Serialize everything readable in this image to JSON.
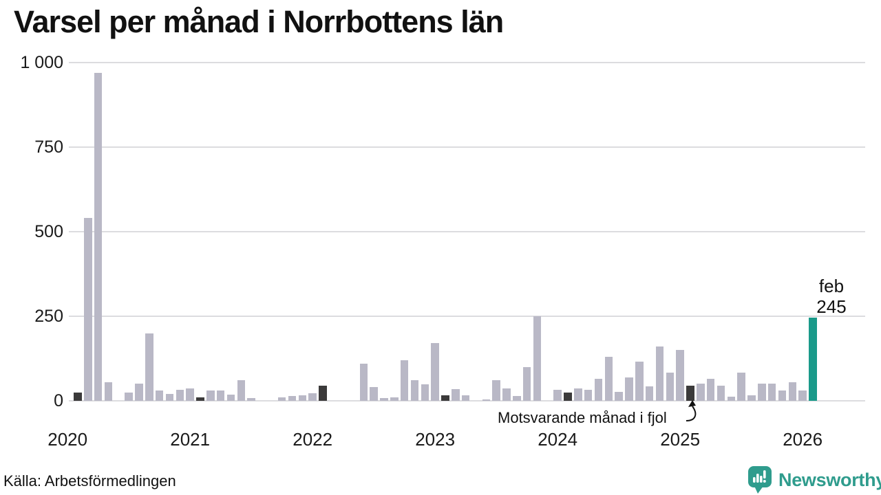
{
  "title": "Varsel per månad i Norrbottens län",
  "source": "Källa: Arbetsförmedlingen",
  "branding": {
    "name": "Newsworthy"
  },
  "annotation": {
    "text": "Motsvarande månad i fjol",
    "points_to": "2025-02"
  },
  "current_label": {
    "month": "feb",
    "value": "245"
  },
  "y_axis": {
    "ticks": [
      "1 000",
      "750",
      "500",
      "250",
      "0"
    ],
    "values": [
      1000,
      750,
      500,
      250,
      0
    ]
  },
  "x_axis": {
    "years": [
      "2020",
      "2021",
      "2022",
      "2023",
      "2024",
      "2025",
      "2026"
    ]
  },
  "colors": {
    "bar": "#b9b8c6",
    "bar_prev_feb": "#3b3a3a",
    "bar_current": "#1a9a8a",
    "grid": "#dcdcdf",
    "text": "#111111",
    "brand": "#2f9c8d"
  },
  "chart_data": {
    "type": "bar",
    "title": "Varsel per månad i Norrbottens län",
    "xlabel": "",
    "ylabel": "",
    "ylim": [
      0,
      1000
    ],
    "grid": "horizontal",
    "legend": "none",
    "highlight_note": "February bars dark; current month (feb 2026) teal, labeled 245",
    "months": [
      {
        "m": "2020-02",
        "v": 25,
        "k": "prev_feb"
      },
      {
        "m": "2020-03",
        "v": 540,
        "k": "normal"
      },
      {
        "m": "2020-04",
        "v": 970,
        "k": "normal"
      },
      {
        "m": "2020-05",
        "v": 55,
        "k": "normal"
      },
      {
        "m": "2020-06",
        "v": 0,
        "k": "normal"
      },
      {
        "m": "2020-07",
        "v": 25,
        "k": "normal"
      },
      {
        "m": "2020-08",
        "v": 50,
        "k": "normal"
      },
      {
        "m": "2020-09",
        "v": 200,
        "k": "normal"
      },
      {
        "m": "2020-10",
        "v": 30,
        "k": "normal"
      },
      {
        "m": "2020-11",
        "v": 20,
        "k": "normal"
      },
      {
        "m": "2020-12",
        "v": 33,
        "k": "normal"
      },
      {
        "m": "2021-01",
        "v": 37,
        "k": "normal"
      },
      {
        "m": "2021-02",
        "v": 10,
        "k": "prev_feb"
      },
      {
        "m": "2021-03",
        "v": 30,
        "k": "normal"
      },
      {
        "m": "2021-04",
        "v": 30,
        "k": "normal"
      },
      {
        "m": "2021-05",
        "v": 18,
        "k": "normal"
      },
      {
        "m": "2021-06",
        "v": 60,
        "k": "normal"
      },
      {
        "m": "2021-07",
        "v": 8,
        "k": "normal"
      },
      {
        "m": "2021-08",
        "v": 0,
        "k": "normal"
      },
      {
        "m": "2021-09",
        "v": 0,
        "k": "normal"
      },
      {
        "m": "2021-10",
        "v": 10,
        "k": "normal"
      },
      {
        "m": "2021-11",
        "v": 14,
        "k": "normal"
      },
      {
        "m": "2021-12",
        "v": 16,
        "k": "normal"
      },
      {
        "m": "2022-01",
        "v": 23,
        "k": "normal"
      },
      {
        "m": "2022-02",
        "v": 45,
        "k": "prev_feb"
      },
      {
        "m": "2022-03",
        "v": 0,
        "k": "normal"
      },
      {
        "m": "2022-04",
        "v": 0,
        "k": "normal"
      },
      {
        "m": "2022-05",
        "v": 0,
        "k": "normal"
      },
      {
        "m": "2022-06",
        "v": 110,
        "k": "normal"
      },
      {
        "m": "2022-07",
        "v": 40,
        "k": "normal"
      },
      {
        "m": "2022-08",
        "v": 8,
        "k": "normal"
      },
      {
        "m": "2022-09",
        "v": 10,
        "k": "normal"
      },
      {
        "m": "2022-10",
        "v": 120,
        "k": "normal"
      },
      {
        "m": "2022-11",
        "v": 60,
        "k": "normal"
      },
      {
        "m": "2022-12",
        "v": 48,
        "k": "normal"
      },
      {
        "m": "2023-01",
        "v": 170,
        "k": "normal"
      },
      {
        "m": "2023-02",
        "v": 16,
        "k": "prev_feb"
      },
      {
        "m": "2023-03",
        "v": 35,
        "k": "normal"
      },
      {
        "m": "2023-04",
        "v": 16,
        "k": "normal"
      },
      {
        "m": "2023-05",
        "v": 0,
        "k": "normal"
      },
      {
        "m": "2023-06",
        "v": 4,
        "k": "normal"
      },
      {
        "m": "2023-07",
        "v": 60,
        "k": "normal"
      },
      {
        "m": "2023-08",
        "v": 36,
        "k": "normal"
      },
      {
        "m": "2023-09",
        "v": 14,
        "k": "normal"
      },
      {
        "m": "2023-10",
        "v": 100,
        "k": "normal"
      },
      {
        "m": "2023-11",
        "v": 250,
        "k": "normal"
      },
      {
        "m": "2023-12",
        "v": 0,
        "k": "normal"
      },
      {
        "m": "2024-01",
        "v": 33,
        "k": "normal"
      },
      {
        "m": "2024-02",
        "v": 24,
        "k": "prev_feb"
      },
      {
        "m": "2024-03",
        "v": 37,
        "k": "normal"
      },
      {
        "m": "2024-04",
        "v": 32,
        "k": "normal"
      },
      {
        "m": "2024-05",
        "v": 65,
        "k": "normal"
      },
      {
        "m": "2024-06",
        "v": 130,
        "k": "normal"
      },
      {
        "m": "2024-07",
        "v": 27,
        "k": "normal"
      },
      {
        "m": "2024-08",
        "v": 70,
        "k": "normal"
      },
      {
        "m": "2024-09",
        "v": 115,
        "k": "normal"
      },
      {
        "m": "2024-10",
        "v": 42,
        "k": "normal"
      },
      {
        "m": "2024-11",
        "v": 160,
        "k": "normal"
      },
      {
        "m": "2024-12",
        "v": 83,
        "k": "normal"
      },
      {
        "m": "2025-01",
        "v": 150,
        "k": "normal"
      },
      {
        "m": "2025-02",
        "v": 45,
        "k": "prev_feb"
      },
      {
        "m": "2025-03",
        "v": 50,
        "k": "normal"
      },
      {
        "m": "2025-04",
        "v": 65,
        "k": "normal"
      },
      {
        "m": "2025-05",
        "v": 45,
        "k": "normal"
      },
      {
        "m": "2025-06",
        "v": 12,
        "k": "normal"
      },
      {
        "m": "2025-07",
        "v": 83,
        "k": "normal"
      },
      {
        "m": "2025-08",
        "v": 17,
        "k": "normal"
      },
      {
        "m": "2025-09",
        "v": 50,
        "k": "normal"
      },
      {
        "m": "2025-10",
        "v": 50,
        "k": "normal"
      },
      {
        "m": "2025-11",
        "v": 30,
        "k": "normal"
      },
      {
        "m": "2025-12",
        "v": 55,
        "k": "normal"
      },
      {
        "m": "2026-01",
        "v": 30,
        "k": "normal"
      },
      {
        "m": "2026-02",
        "v": 245,
        "k": "current"
      }
    ]
  }
}
